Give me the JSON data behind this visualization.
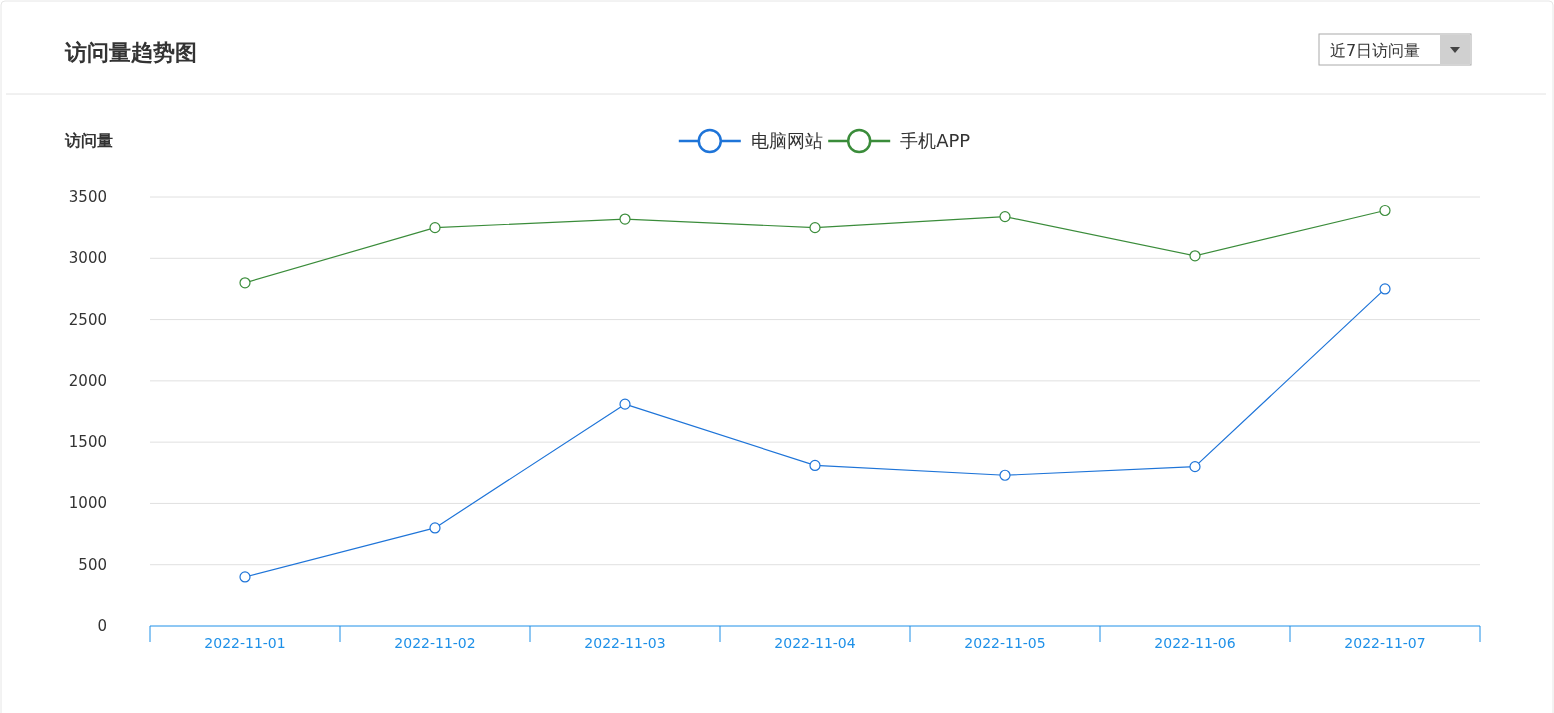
{
  "chart_data": {
    "type": "line",
    "title": "访问量趋势图",
    "ylabel": "访问量",
    "annotations": [
      "近7日访问量"
    ],
    "categories": [
      "2022-11-01",
      "2022-11-02",
      "2022-11-03",
      "2022-11-04",
      "2022-11-05",
      "2022-11-06",
      "2022-11-07"
    ],
    "series": [
      {
        "name": "电脑网站",
        "color": "#1e74d8",
        "values": [
          400,
          800,
          1810,
          1310,
          1230,
          1300,
          2750
        ]
      },
      {
        "name": "手机APP",
        "color": "#3a8c3a",
        "values": [
          2800,
          3250,
          3320,
          3250,
          3340,
          3020,
          3390
        ]
      }
    ],
    "ylim": [
      0,
      3500
    ],
    "yticks": [
      0,
      500,
      1000,
      1500,
      2000,
      2500,
      3000,
      3500
    ],
    "grid": "y",
    "legend": "top",
    "marker": "circle",
    "line_style": "solid"
  }
}
